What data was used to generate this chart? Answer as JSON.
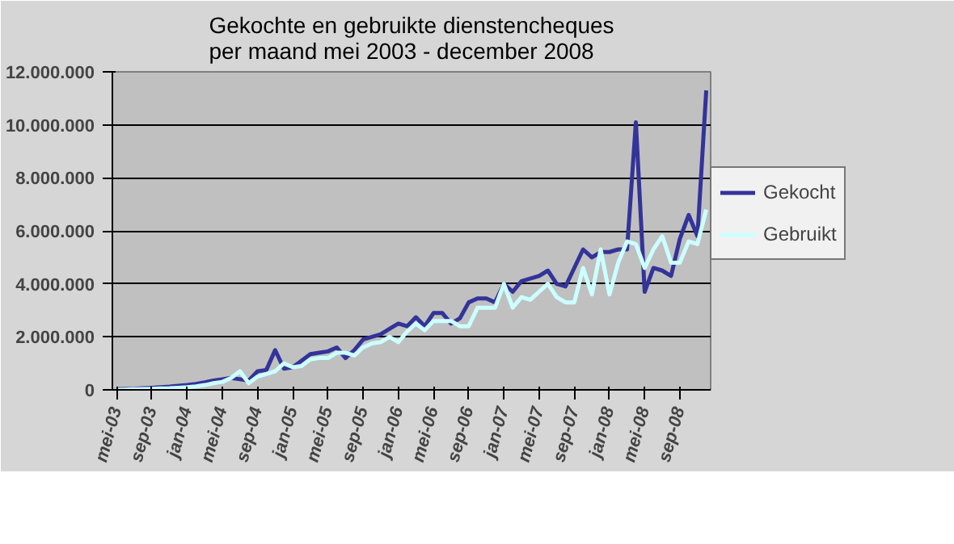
{
  "chart_data": {
    "type": "line",
    "title": "Gekochte en gebruikte dienstencheques\nper maand  mei 2003 - december 2008",
    "categories": [
      "mei-03",
      null,
      null,
      null,
      "sep-03",
      null,
      null,
      null,
      "jan-04",
      null,
      null,
      null,
      "mei-04",
      null,
      null,
      null,
      "sep-04",
      null,
      null,
      null,
      "jan-05",
      null,
      null,
      null,
      "mei-05",
      null,
      null,
      null,
      "sep-05",
      null,
      null,
      null,
      "jan-06",
      null,
      null,
      null,
      "mei-06",
      null,
      null,
      null,
      "sep-06",
      null,
      null,
      null,
      "jan-07",
      null,
      null,
      null,
      "mei-07",
      null,
      null,
      null,
      "sep-07",
      null,
      null,
      null,
      "jan-08",
      null,
      null,
      null,
      "mei-08",
      null,
      null,
      null,
      "sep-08",
      null,
      null,
      null
    ],
    "series": [
      {
        "name": "Gekocht",
        "color": "#333399",
        "values": [
          20000,
          30000,
          40000,
          60000,
          80000,
          100000,
          120000,
          150000,
          180000,
          220000,
          280000,
          350000,
          400000,
          450000,
          400000,
          350000,
          700000,
          750000,
          1500000,
          800000,
          850000,
          1100000,
          1350000,
          1400000,
          1450000,
          1600000,
          1200000,
          1500000,
          1900000,
          2000000,
          2100000,
          2300000,
          2500000,
          2400000,
          2740000,
          2400000,
          2900000,
          2900000,
          2500000,
          2700000,
          3300000,
          3450000,
          3450000,
          3300000,
          4000000,
          3700000,
          4100000,
          4200000,
          4300000,
          4500000,
          4000000,
          3900000,
          4600000,
          5300000,
          5000000,
          5200000,
          5200000,
          5300000,
          5300000,
          10100000,
          3700000,
          4600000,
          4500000,
          4300000,
          5700000,
          6600000,
          5800000,
          11300000
        ]
      },
      {
        "name": "Gebruikt",
        "color": "#ccffff",
        "values": [
          0,
          10000,
          20000,
          30000,
          40000,
          50000,
          60000,
          80000,
          100000,
          130000,
          180000,
          250000,
          300000,
          450000,
          700000,
          250000,
          500000,
          600000,
          700000,
          1000000,
          850000,
          900000,
          1150000,
          1200000,
          1200000,
          1400000,
          1400000,
          1300000,
          1600000,
          1750000,
          1800000,
          2000000,
          1800000,
          2200000,
          2500000,
          2250000,
          2600000,
          2600000,
          2600000,
          2400000,
          2400000,
          3100000,
          3100000,
          3100000,
          4000000,
          3100000,
          3500000,
          3400000,
          3700000,
          4000000,
          3500000,
          3300000,
          3300000,
          4600000,
          3600000,
          5300000,
          3600000,
          4800000,
          5600000,
          5500000,
          4600000,
          5300000,
          5800000,
          4800000,
          4800000,
          5600000,
          5500000,
          6800000
        ]
      }
    ],
    "ylim": [
      0,
      12000000
    ],
    "yticks": [
      {
        "value": 0,
        "label": "0"
      },
      {
        "value": 2000000,
        "label": "2.000.000"
      },
      {
        "value": 4000000,
        "label": "4.000.000"
      },
      {
        "value": 6000000,
        "label": "6.000.000"
      },
      {
        "value": 8000000,
        "label": "8.000.000"
      },
      {
        "value": 10000000,
        "label": "10.000.000"
      },
      {
        "value": 12000000,
        "label": "12.000.000"
      }
    ],
    "grid": "y",
    "legend": "right",
    "marker": "none",
    "line_style": "solid"
  }
}
